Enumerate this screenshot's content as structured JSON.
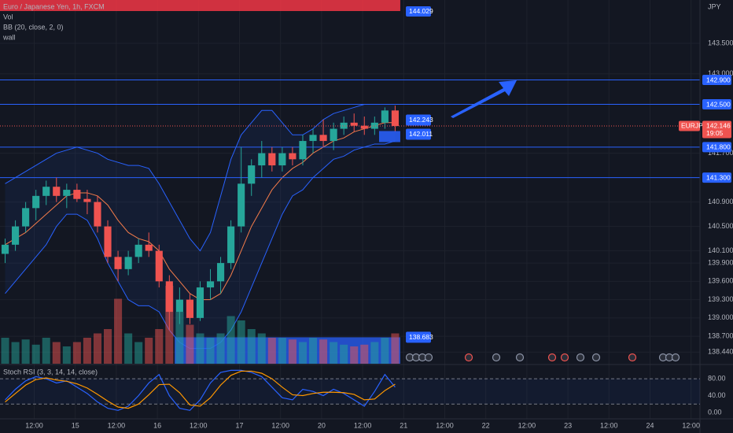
{
  "header": {
    "symbol": "Euro / Japanese Yen, 1h, FXCM",
    "indicators": [
      "Vol",
      "BB (20, close, 2, 0)",
      "wall"
    ],
    "currency": "JPY"
  },
  "chart_data": {
    "type": "candlestick",
    "x": [
      0,
      3,
      6,
      9,
      12,
      15,
      18,
      21,
      24,
      27,
      30,
      33,
      36,
      39,
      42,
      45,
      48,
      51,
      54,
      57,
      60,
      63,
      66,
      69,
      72,
      75,
      78,
      81,
      84,
      87,
      90,
      93,
      96,
      99,
      102,
      105,
      108,
      111,
      114
    ],
    "open": [
      140.05,
      140.2,
      140.5,
      140.8,
      141.0,
      141.15,
      141.0,
      141.1,
      140.95,
      140.9,
      140.5,
      140.0,
      139.8,
      140.0,
      140.2,
      140.1,
      139.6,
      139.1,
      139.3,
      139.0,
      139.5,
      139.6,
      139.9,
      140.5,
      141.2,
      141.5,
      141.7,
      141.5,
      141.7,
      141.6,
      141.9,
      142.0,
      141.9,
      142.1,
      142.2,
      142.15,
      142.1,
      142.2,
      142.4
    ],
    "high": [
      140.3,
      140.6,
      140.9,
      141.1,
      141.25,
      141.3,
      141.2,
      141.2,
      141.1,
      141.0,
      140.6,
      140.1,
      140.1,
      140.3,
      140.4,
      140.2,
      139.7,
      139.5,
      139.4,
      139.6,
      139.8,
      140.0,
      140.6,
      141.8,
      141.6,
      141.9,
      141.8,
      141.8,
      141.8,
      142.0,
      142.1,
      142.25,
      142.2,
      142.3,
      142.35,
      142.3,
      142.3,
      142.45,
      142.48
    ],
    "low": [
      139.9,
      140.1,
      140.4,
      140.6,
      140.85,
      140.9,
      140.8,
      140.9,
      140.7,
      140.4,
      139.9,
      139.6,
      139.7,
      139.9,
      140.0,
      139.5,
      138.8,
      138.9,
      138.9,
      138.95,
      139.3,
      139.4,
      139.8,
      140.4,
      141.0,
      141.3,
      141.4,
      141.4,
      141.5,
      141.5,
      141.7,
      141.8,
      141.75,
      142.0,
      142.05,
      142.0,
      142.0,
      142.1,
      142.05
    ],
    "close": [
      140.2,
      140.5,
      140.8,
      141.0,
      141.15,
      141.0,
      141.1,
      140.95,
      140.9,
      140.5,
      140.0,
      139.8,
      140.0,
      140.2,
      140.1,
      139.6,
      139.1,
      139.3,
      139.0,
      139.5,
      139.6,
      139.9,
      140.5,
      141.2,
      141.5,
      141.7,
      141.5,
      141.7,
      141.6,
      141.9,
      142.0,
      141.9,
      142.1,
      142.2,
      142.15,
      142.1,
      142.2,
      142.4,
      142.146
    ],
    "volume": [
      30,
      25,
      28,
      22,
      30,
      25,
      20,
      25,
      30,
      35,
      40,
      75,
      35,
      25,
      30,
      40,
      90,
      60,
      45,
      35,
      30,
      35,
      55,
      50,
      40,
      35,
      30,
      30,
      28,
      25,
      30,
      28,
      25,
      22,
      20,
      22,
      25,
      30,
      35
    ],
    "vlim": [
      0,
      100
    ],
    "bb_upper": [
      141.2,
      141.3,
      141.4,
      141.5,
      141.6,
      141.7,
      141.75,
      141.8,
      141.75,
      141.7,
      141.6,
      141.55,
      141.5,
      141.5,
      141.45,
      141.2,
      140.9,
      140.6,
      140.3,
      140.1,
      140.4,
      141.0,
      141.6,
      142.0,
      142.2,
      142.4,
      142.4,
      142.2,
      142.0,
      142.0,
      142.1,
      142.25,
      142.35,
      142.4,
      142.45,
      142.5,
      142.5,
      142.5,
      142.5
    ],
    "bb_basis": [
      140.2,
      140.3,
      140.4,
      140.55,
      140.7,
      140.85,
      141.0,
      141.05,
      141.05,
      141.0,
      140.85,
      140.6,
      140.4,
      140.3,
      140.25,
      140.1,
      139.8,
      139.6,
      139.4,
      139.3,
      139.3,
      139.4,
      139.7,
      140.1,
      140.5,
      140.8,
      141.1,
      141.3,
      141.45,
      141.55,
      141.7,
      141.8,
      141.9,
      141.95,
      142.05,
      142.1,
      142.15,
      142.2,
      142.2
    ],
    "bb_lower": [
      139.4,
      139.6,
      139.8,
      140.0,
      140.2,
      140.5,
      140.7,
      140.7,
      140.6,
      140.3,
      139.9,
      139.6,
      139.3,
      139.2,
      139.2,
      139.1,
      138.8,
      138.6,
      138.5,
      138.5,
      138.5,
      138.6,
      138.8,
      139.1,
      139.5,
      139.9,
      140.3,
      140.7,
      141.0,
      141.1,
      141.3,
      141.45,
      141.6,
      141.65,
      141.75,
      141.8,
      141.85,
      141.85,
      141.9
    ],
    "colors": {
      "up": "#26a69a",
      "down": "#ef5350",
      "bb": "#2962ff",
      "basis": "#f57c4a",
      "level": "#2962ff"
    },
    "xlim": [
      0,
      204.6
    ],
    "ylim": [
      138.25,
      144.21
    ],
    "yticks": [
      {
        "value": 143.5,
        "label": "143.500"
      },
      {
        "value": 143.0,
        "label": "143.000"
      },
      {
        "value": 141.7,
        "label": "141.700"
      },
      {
        "value": 140.9,
        "label": "140.900"
      },
      {
        "value": 140.5,
        "label": "140.500"
      },
      {
        "value": 140.1,
        "label": "140.100"
      },
      {
        "value": 139.9,
        "label": "139.900"
      },
      {
        "value": 139.6,
        "label": "139.600"
      },
      {
        "value": 139.3,
        "label": "139.300"
      },
      {
        "value": 139.0,
        "label": "139.000"
      },
      {
        "value": 138.7,
        "label": "138.700"
      },
      {
        "value": 138.44,
        "label": "138.440"
      }
    ],
    "xticks": [
      {
        "value": 10,
        "label": "12:00"
      },
      {
        "value": 22,
        "label": "15"
      },
      {
        "value": 34,
        "label": "12:00"
      },
      {
        "value": 46,
        "label": "16"
      },
      {
        "value": 58,
        "label": "12:00"
      },
      {
        "value": 70,
        "label": "17"
      },
      {
        "value": 82,
        "label": "12:00"
      },
      {
        "value": 94,
        "label": "20"
      },
      {
        "value": 106,
        "label": "12:00"
      },
      {
        "value": 118,
        "label": "21"
      },
      {
        "value": 130,
        "label": "12:00"
      },
      {
        "value": 142,
        "label": "22"
      },
      {
        "value": 154,
        "label": "12:00"
      },
      {
        "value": 166,
        "label": "23"
      },
      {
        "value": 178,
        "label": "12:00"
      },
      {
        "value": 190,
        "label": "24"
      },
      {
        "value": 202,
        "label": "12:00"
      }
    ],
    "levels": [
      {
        "value": 142.9,
        "label": "142.900"
      },
      {
        "value": 142.5,
        "label": "142.500"
      },
      {
        "value": 141.8,
        "label": "141.800"
      },
      {
        "value": 141.3,
        "label": "141.300"
      }
    ],
    "zone_top": {
      "value": 144.029,
      "label": "144.029"
    },
    "last_price": {
      "value": 142.146,
      "label": "142.146",
      "symbol": "EURJPY",
      "countdown": "19:05"
    },
    "markers": [
      {
        "value": 142.243,
        "label": "142.243"
      },
      {
        "value": 142.011,
        "label": "142.011"
      },
      {
        "value": 138.683,
        "label": "138.683"
      }
    ]
  },
  "stoch": {
    "title": "Stoch RSI (3, 3, 14, 14, close)",
    "k": [
      30,
      55,
      75,
      85,
      80,
      70,
      75,
      60,
      45,
      25,
      10,
      5,
      15,
      40,
      70,
      90,
      40,
      10,
      5,
      30,
      70,
      95,
      100,
      100,
      95,
      85,
      60,
      35,
      30,
      55,
      50,
      40,
      55,
      45,
      30,
      15,
      50,
      90,
      60
    ],
    "d": [
      25,
      45,
      65,
      78,
      82,
      77,
      74,
      68,
      58,
      43,
      27,
      13,
      10,
      20,
      42,
      66,
      67,
      47,
      18,
      15,
      35,
      65,
      88,
      98,
      98,
      93,
      80,
      60,
      42,
      40,
      45,
      48,
      48,
      47,
      43,
      30,
      32,
      52,
      67
    ],
    "colors": {
      "k": "#2962ff",
      "d": "#ff9800"
    },
    "ylim": [
      -15,
      110
    ],
    "yticks": [
      {
        "value": 80,
        "label": "80.00"
      },
      {
        "value": 40,
        "label": "40.00"
      },
      {
        "value": 0,
        "label": "0.00"
      }
    ],
    "bands": [
      80,
      20
    ]
  }
}
